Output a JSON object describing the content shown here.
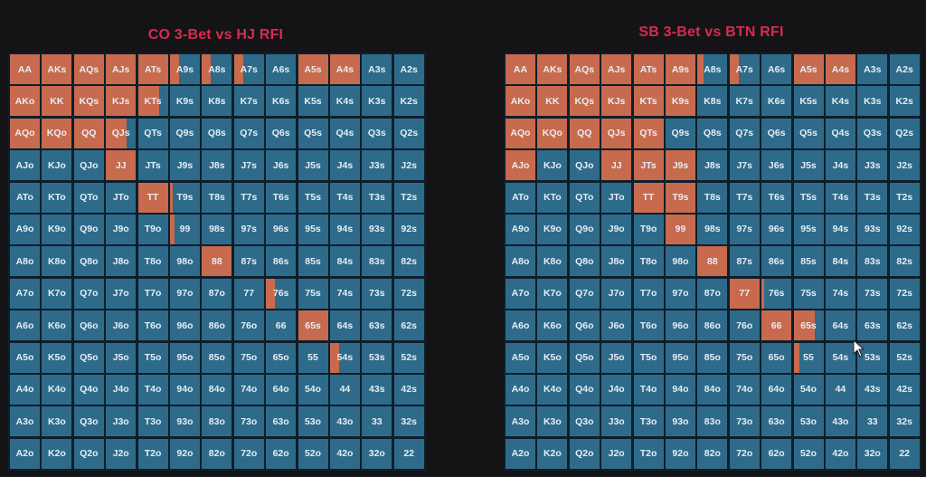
{
  "colors": {
    "raise": "#c86a4e",
    "fold": "#2e6b8a",
    "title": "#d92a50"
  },
  "charts": [
    {
      "id": "left",
      "title": "CO 3-Bet vs HJ RFI",
      "raise": {
        "AA": 1,
        "AKs": 1,
        "AQs": 1,
        "AJs": 1,
        "ATs": 1,
        "A9s": 0.3,
        "A8s": 0.3,
        "A7s": 0.3,
        "A5s": 1,
        "A4s": 1,
        "AKo": 1,
        "KK": 1,
        "KQs": 1,
        "KJs": 1,
        "KTs": 0.7,
        "AQo": 1,
        "KQo": 1,
        "QQ": 1,
        "QJs": 0.7,
        "JJ": 1,
        "TT": 1,
        "T9s": 0.1,
        "99": 0.15,
        "88": 1,
        "76s": 0.3,
        "65s": 1,
        "54s": 0.3
      }
    },
    {
      "id": "right",
      "title": "SB 3-Bet vs BTN RFI",
      "raise": {
        "AA": 1,
        "AKs": 1,
        "AQs": 1,
        "AJs": 1,
        "ATs": 1,
        "A9s": 1,
        "A8s": 0.2,
        "A7s": 0.3,
        "A5s": 1,
        "A4s": 1,
        "AKo": 1,
        "KK": 1,
        "KQs": 1,
        "KJs": 1,
        "KTs": 1,
        "K9s": 1,
        "AQo": 1,
        "KQo": 1,
        "QQ": 1,
        "QJs": 1,
        "QTs": 1,
        "AJo": 1,
        "JJ": 1,
        "JTs": 1,
        "J9s": 1,
        "TT": 1,
        "T9s": 1,
        "99": 1,
        "88": 1,
        "77": 1,
        "76s": 0.1,
        "66": 1,
        "65s": 0.7,
        "55": 0.2
      }
    }
  ]
}
